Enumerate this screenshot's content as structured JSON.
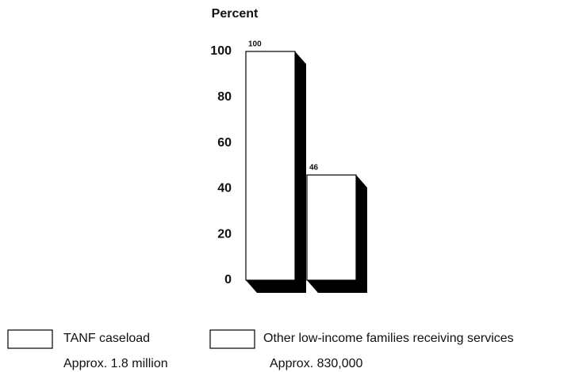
{
  "chart_data": {
    "type": "bar",
    "y_label": "Percent",
    "categories": [
      "TANF caseload",
      "Other low-income families receiving services"
    ],
    "category_notes": [
      "Approx. 1.8 million",
      "Approx. 830,000"
    ],
    "values": [
      100,
      46
    ],
    "color": "#ffffff",
    "shadow_color": "#000000",
    "ylim": [
      0,
      100
    ],
    "yticks": [
      0,
      20,
      40,
      60,
      80,
      100
    ],
    "grid": false
  }
}
